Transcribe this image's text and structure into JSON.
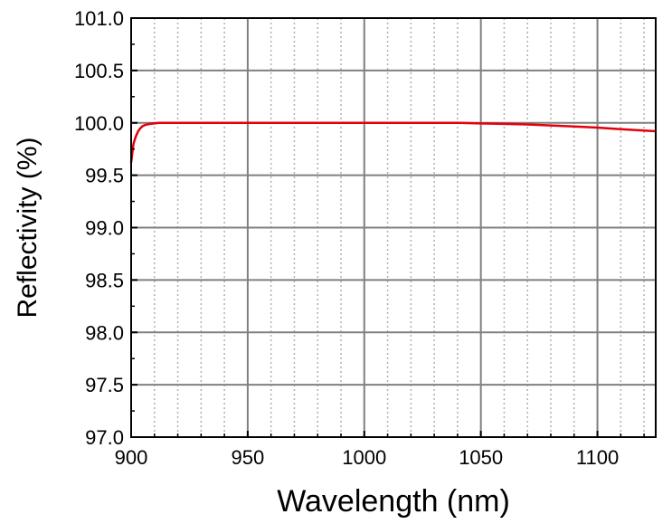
{
  "chart_data": {
    "type": "line",
    "title": "",
    "xlabel": "Wavelength (nm)",
    "ylabel": "Reflectivity (%)",
    "xlim": [
      900,
      1125
    ],
    "ylim": [
      97.0,
      101.0
    ],
    "x_ticks": [
      "900",
      "950",
      "1000",
      "1050",
      "1100"
    ],
    "y_ticks": [
      "97.0",
      "97.5",
      "98.0",
      "98.5",
      "99.0",
      "99.5",
      "100.0",
      "100.5",
      "101.0"
    ],
    "grid": true,
    "legend": "none",
    "series": [
      {
        "color": "#e3000b",
        "x": [
          900,
          901,
          902,
          903,
          904,
          905,
          906,
          908,
          910,
          912,
          915,
          920,
          930,
          950,
          1000,
          1040,
          1050,
          1060,
          1070,
          1080,
          1090,
          1100,
          1110,
          1125
        ],
        "y": [
          99.62,
          99.8,
          99.87,
          99.92,
          99.95,
          99.97,
          99.98,
          99.99,
          99.995,
          100.0,
          100.0,
          100.0,
          100.0,
          100.0,
          100.0,
          100.0,
          99.995,
          99.99,
          99.985,
          99.975,
          99.965,
          99.955,
          99.94,
          99.92
        ]
      }
    ]
  }
}
